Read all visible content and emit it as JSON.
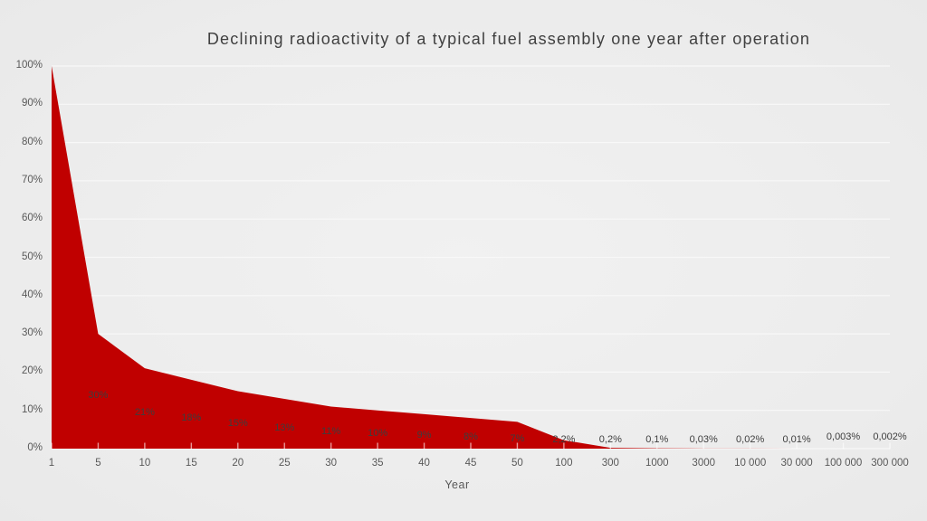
{
  "chart_data": {
    "type": "area",
    "title": "Declining radioactivity of a typical fuel assembly one year after operation",
    "xlabel": "Year",
    "ylabel": "",
    "categories": [
      "1",
      "5",
      "10",
      "15",
      "20",
      "25",
      "30",
      "35",
      "40",
      "45",
      "50",
      "100",
      "300",
      "1000",
      "3000",
      "10 000",
      "30 000",
      "100 000",
      "300 000"
    ],
    "values": [
      100,
      30,
      21,
      18,
      15,
      13,
      11,
      10,
      9,
      8,
      7,
      2.2,
      0.2,
      0.1,
      0.03,
      0.02,
      0.01,
      0.003,
      0.002
    ],
    "point_labels": [
      "",
      "30%",
      "21%",
      "18%",
      "15%",
      "13%",
      "11%",
      "10%",
      "9%",
      "8%",
      "7%",
      "2,2%",
      "0,2%",
      "0,1%",
      "0,03%",
      "0,02%",
      "0,01%",
      "0,003%",
      "0,002%"
    ],
    "y_ticks": [
      "0%",
      "10%",
      "20%",
      "30%",
      "40%",
      "50%",
      "60%",
      "70%",
      "80%",
      "90%",
      "100%"
    ],
    "ylim": [
      0,
      100
    ],
    "grid": true,
    "legend": "none",
    "colors": {
      "area": "#c00000",
      "background": "#ededed",
      "gridline": "#f8f8f8",
      "tick_mark": "rgba(255,255,255,0.6)",
      "axis_text": "#595959",
      "title_text": "#404040",
      "data_label_text": "#3d3d3d"
    }
  }
}
